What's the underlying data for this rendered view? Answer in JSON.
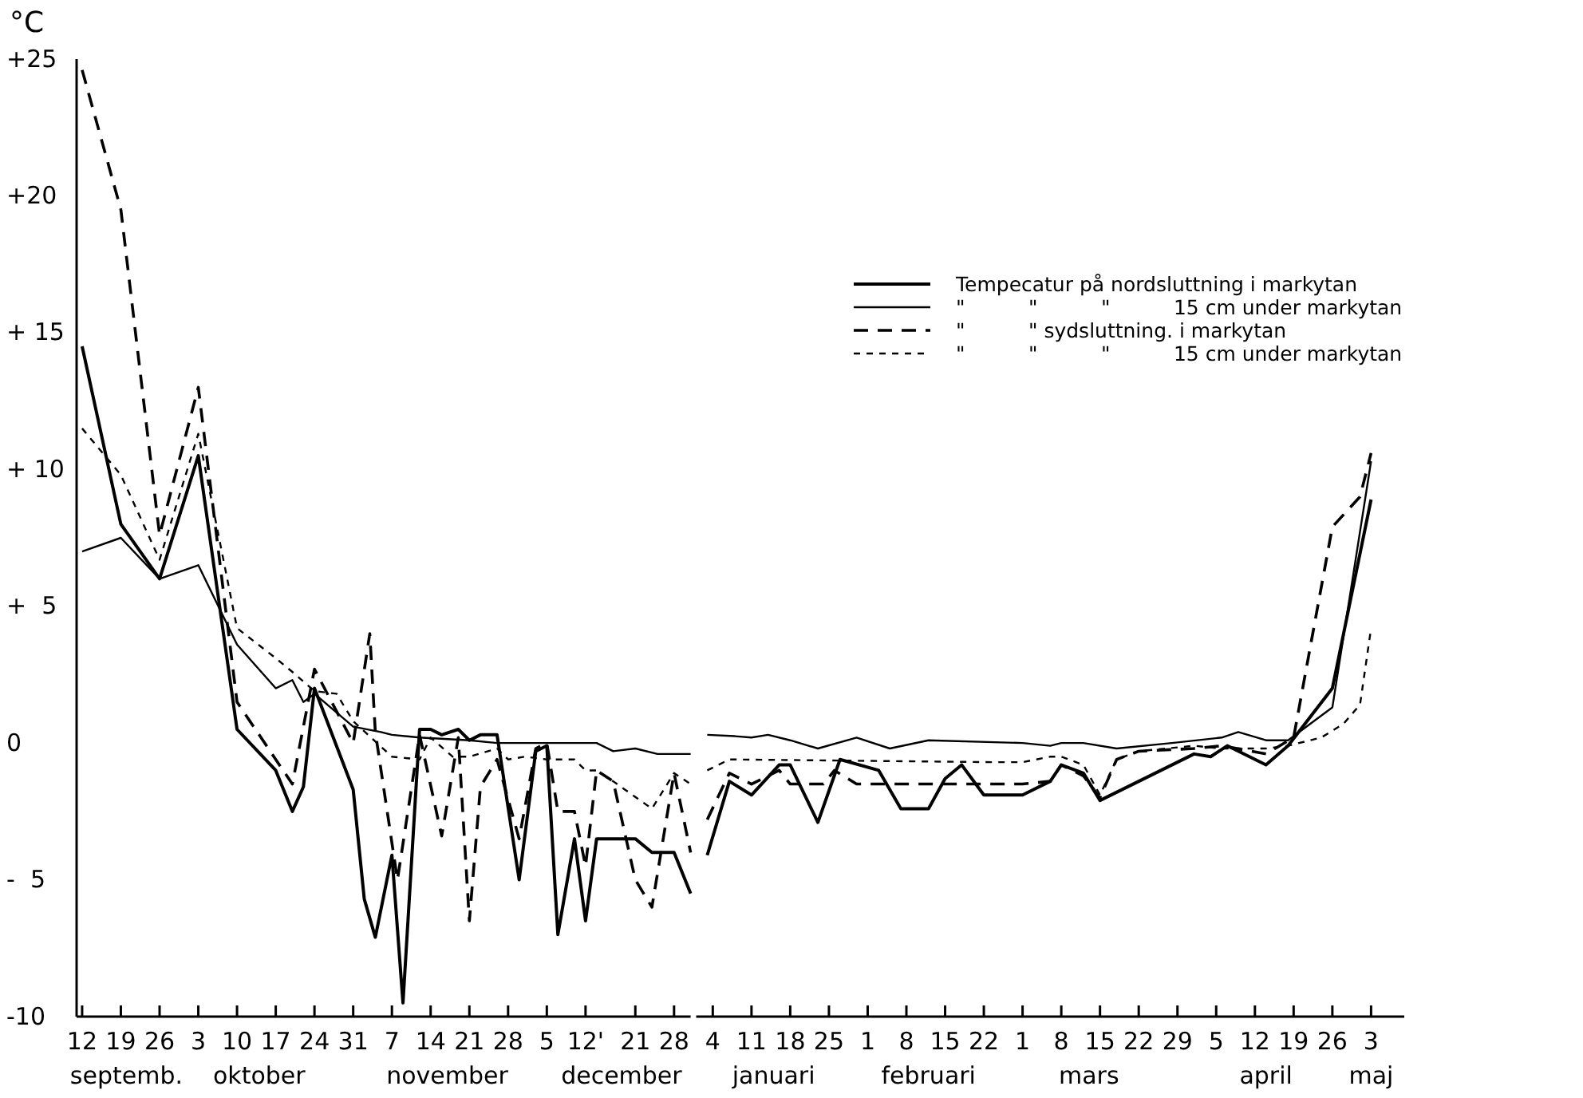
{
  "chart_data": [
    {
      "type": "line",
      "ylabel": "°C",
      "xlim": [
        "--09-11",
        "--12-31"
      ],
      "ylim": [
        -10,
        25
      ],
      "xticks": [
        {
          "value": "--09-12",
          "label": "12"
        },
        {
          "value": "--09-19",
          "label": "19"
        },
        {
          "value": "--09-26",
          "label": "26"
        },
        {
          "value": "--10-03",
          "label": "3"
        },
        {
          "value": "--10-10",
          "label": "10"
        },
        {
          "value": "--10-17",
          "label": "17"
        },
        {
          "value": "--10-24",
          "label": "24"
        },
        {
          "value": "--10-31",
          "label": "31"
        },
        {
          "value": "--11-07",
          "label": "7"
        },
        {
          "value": "--11-14",
          "label": "14"
        },
        {
          "value": "--11-21",
          "label": "21"
        },
        {
          "value": "--11-28",
          "label": "28"
        },
        {
          "value": "--12-05",
          "label": "5"
        },
        {
          "value": "--12-12",
          "label": "12'"
        },
        {
          "value": "--12-21",
          "label": "21"
        },
        {
          "value": "--12-28",
          "label": "28"
        }
      ],
      "yticks": [
        {
          "value": 25,
          "label": "+25"
        },
        {
          "value": 20,
          "label": "+20"
        },
        {
          "value": 15,
          "label": "+ 15"
        },
        {
          "value": 10,
          "label": "+ 10"
        },
        {
          "value": 5,
          "label": "+  5"
        },
        0,
        {
          "value": -5,
          "label": "-  5"
        },
        -10
      ],
      "annotations": [
        "septemb.",
        "oktober",
        "november",
        "december"
      ],
      "series": [
        {
          "color": "#000000",
          "line_style": "solid",
          "x": [
            "--09-12",
            "--09-19",
            "--09-26",
            "--10-03",
            "--10-10",
            "--10-17",
            "--10-20",
            "--10-22",
            "--10-24",
            "--10-31",
            "--11-02",
            "--11-04",
            "--11-07",
            "--11-09",
            "--11-12",
            "--11-14",
            "--11-16",
            "--11-19",
            "--11-21",
            "--11-23",
            "--11-26",
            "--11-30",
            "--12-03",
            "--12-05",
            "--12-07",
            "--12-10",
            "--12-12",
            "--12-14",
            "--12-21",
            "--12-24",
            "--12-28",
            "--12-31"
          ],
          "values": [
            14.5,
            8.0,
            6.0,
            10.5,
            0.5,
            -1.0,
            -2.5,
            -1.6,
            2.0,
            -1.7,
            -5.7,
            -7.1,
            -4.1,
            -9.5,
            0.5,
            0.5,
            0.3,
            0.5,
            0.1,
            0.3,
            0.3,
            -5.0,
            -0.3,
            -0.1,
            -7.0,
            -3.5,
            -6.5,
            -3.5,
            -3.5,
            -4.0,
            -4.0,
            -5.5
          ]
        },
        {
          "color": "#000000",
          "line_style": "solid",
          "x": [
            "--09-12",
            "--09-19",
            "--09-26",
            "--10-03",
            "--10-10",
            "--10-17",
            "--10-20",
            "--10-22",
            "--10-24",
            "--10-31",
            "--11-05",
            "--11-07",
            "--11-12",
            "--11-21",
            "--11-26",
            "--12-05",
            "--12-14",
            "--12-17",
            "--12-21",
            "--12-25",
            "--12-31"
          ],
          "values": [
            7.0,
            7.5,
            6.0,
            6.5,
            3.6,
            2.0,
            2.3,
            1.5,
            1.8,
            0.6,
            0.4,
            0.3,
            0.2,
            0.1,
            0.0,
            0.0,
            0.0,
            -0.3,
            -0.2,
            -0.4,
            -0.4
          ]
        },
        {
          "color": "#000000",
          "line_style": "dashed",
          "x": [
            "--09-12",
            "--09-19",
            "--09-26",
            "--10-03",
            "--10-10",
            "--10-17",
            "--10-20",
            "--10-24",
            "--10-31",
            "--11-03",
            "--11-04",
            "--11-08",
            "--11-12",
            "--11-16",
            "--11-19",
            "--11-21",
            "--11-23",
            "--11-26",
            "--11-30",
            "--12-03",
            "--12-05",
            "--12-07",
            "--12-10",
            "--12-12",
            "--12-14",
            "--12-17",
            "--12-21",
            "--12-24",
            "--12-28",
            "--12-31"
          ],
          "values": [
            24.6,
            19.5,
            7.6,
            13.0,
            1.5,
            -0.6,
            -1.5,
            2.7,
            0.0,
            4.0,
            0.4,
            -5.0,
            0.3,
            -3.4,
            0.2,
            -6.5,
            -1.6,
            -0.6,
            -3.5,
            -0.2,
            0.0,
            -2.5,
            -2.5,
            -4.5,
            -1.0,
            -1.4,
            -5.0,
            -6.0,
            -1.1,
            -4.0
          ]
        },
        {
          "color": "#000000",
          "line_style": "dotted",
          "x": [
            "--09-12",
            "--09-19",
            "--09-26",
            "--10-03",
            "--10-10",
            "--10-17",
            "--10-20",
            "--10-24",
            "--10-28",
            "--10-31",
            "--11-07",
            "--11-12",
            "--11-14",
            "--11-18",
            "--11-21",
            "--11-26",
            "--11-28",
            "--12-01",
            "--12-05",
            "--12-10",
            "--12-12",
            "--12-14",
            "--12-17",
            "--12-24",
            "--12-28",
            "--12-31"
          ],
          "values": [
            11.5,
            9.8,
            6.7,
            11.3,
            4.2,
            3.1,
            2.6,
            1.9,
            1.8,
            0.8,
            -0.5,
            -0.6,
            0.2,
            -0.5,
            -0.5,
            -0.2,
            -0.6,
            -0.5,
            -0.6,
            -0.6,
            -1.0,
            -1.0,
            -1.4,
            -2.4,
            -1.1,
            -1.5
          ]
        }
      ]
    },
    {
      "type": "line",
      "tick_labels": "x",
      "xlim": [
        "--01-01",
        "--05-09"
      ],
      "ylim": [
        -10,
        25
      ],
      "xticks": [
        {
          "value": "--01-04",
          "label": "4"
        },
        {
          "value": "--01-11",
          "label": "11"
        },
        {
          "value": "--01-18",
          "label": "18"
        },
        {
          "value": "--01-25",
          "label": "25"
        },
        {
          "value": "--02-01",
          "label": "1"
        },
        {
          "value": "--02-08",
          "label": "8"
        },
        {
          "value": "--02-15",
          "label": "15"
        },
        {
          "value": "--02-22",
          "label": "22"
        },
        {
          "value": "--03-01",
          "label": "1"
        },
        {
          "value": "--03-08",
          "label": "8"
        },
        {
          "value": "--03-15",
          "label": "15"
        },
        {
          "value": "--03-22",
          "label": "22"
        },
        {
          "value": "--03-29",
          "label": "29"
        },
        {
          "value": "--04-05",
          "label": "5"
        },
        {
          "value": "--04-12",
          "label": "12"
        },
        {
          "value": "--04-19",
          "label": "19"
        },
        {
          "value": "--04-26",
          "label": "26"
        },
        {
          "value": "--05-03",
          "label": "3"
        }
      ],
      "legend": "top right",
      "annotations": [
        "januari",
        "februari",
        "mars",
        "april",
        "maj"
      ],
      "series": [
        {
          "name": "Tempecatur på nordsluttning i markytan",
          "color": "#000000",
          "line_style": "solid",
          "x": [
            "--01-03",
            "--01-07",
            "--01-11",
            "--01-16",
            "--01-18",
            "--01-23",
            "--01-27",
            "--02-03",
            "--02-07",
            "--02-12",
            "--02-15",
            "--02-18",
            "--02-22",
            "--03-01",
            "--03-06",
            "--03-08",
            "--03-12",
            "--03-15",
            "--04-01",
            "--04-04",
            "--04-07",
            "--04-14",
            "--04-18",
            "--04-26",
            "--05-03"
          ],
          "values": [
            -4.1,
            -1.4,
            -1.9,
            -0.8,
            -0.8,
            -2.9,
            -0.6,
            -1.0,
            -2.4,
            -2.4,
            -1.3,
            -0.8,
            -1.9,
            -1.9,
            -1.4,
            -0.8,
            -1.1,
            -2.1,
            -0.4,
            -0.5,
            -0.1,
            -0.8,
            -0.1,
            2.0,
            8.9
          ]
        },
        {
          "name": "\"          \"          \"          15 cm under markytan",
          "color": "#000000",
          "line_style": "solid",
          "x": [
            "--01-03",
            "--01-08",
            "--01-11",
            "--01-14",
            "--01-18",
            "--01-23",
            "--01-30",
            "--02-05",
            "--02-12",
            "--03-01",
            "--03-06",
            "--03-08",
            "--03-12",
            "--03-18",
            "--03-28",
            "--04-06",
            "--04-09",
            "--04-14",
            "--04-18",
            "--04-26",
            "--05-03"
          ],
          "values": [
            0.3,
            0.25,
            0.2,
            0.3,
            0.1,
            -0.2,
            0.2,
            -0.2,
            0.1,
            0.0,
            -0.1,
            0.0,
            0.0,
            -0.2,
            0.0,
            0.2,
            0.4,
            0.1,
            0.1,
            1.3,
            10.3
          ]
        },
        {
          "name": "\"          \" sydsluttning. i markytan",
          "color": "#000000",
          "line_style": "dashed",
          "x": [
            "--01-03",
            "--01-07",
            "--01-11",
            "--01-16",
            "--01-18",
            "--01-24",
            "--01-26",
            "--01-30",
            "--03-01",
            "--03-06",
            "--03-08",
            "--03-12",
            "--03-15",
            "--03-18",
            "--03-22",
            "--04-01",
            "--04-06",
            "--04-14",
            "--04-19",
            "--04-26",
            "--05-01",
            "--05-03"
          ],
          "values": [
            -2.8,
            -1.1,
            -1.5,
            -1.0,
            -1.5,
            -1.5,
            -1.0,
            -1.5,
            -1.5,
            -1.4,
            -0.8,
            -1.2,
            -2.0,
            -0.6,
            -0.3,
            -0.2,
            -0.1,
            -0.4,
            0.2,
            7.9,
            9.0,
            10.6
          ]
        },
        {
          "name": "\"          \"          \"          15 cm under markytan",
          "color": "#000000",
          "line_style": "dotted",
          "x": [
            "--01-03",
            "--01-07",
            "--02-24",
            "--03-01",
            "--03-06",
            "--03-08",
            "--03-12",
            "--03-15",
            "--03-18",
            "--03-22",
            "--04-01",
            "--04-06",
            "--04-14",
            "--04-18",
            "--04-24",
            "--04-28",
            "--05-01",
            "--05-03"
          ],
          "values": [
            -1.0,
            -0.6,
            -0.7,
            -0.7,
            -0.5,
            -0.5,
            -0.8,
            -1.9,
            -0.6,
            -0.3,
            -0.1,
            -0.2,
            -0.2,
            -0.1,
            0.2,
            0.7,
            1.4,
            4.2
          ]
        }
      ]
    }
  ]
}
